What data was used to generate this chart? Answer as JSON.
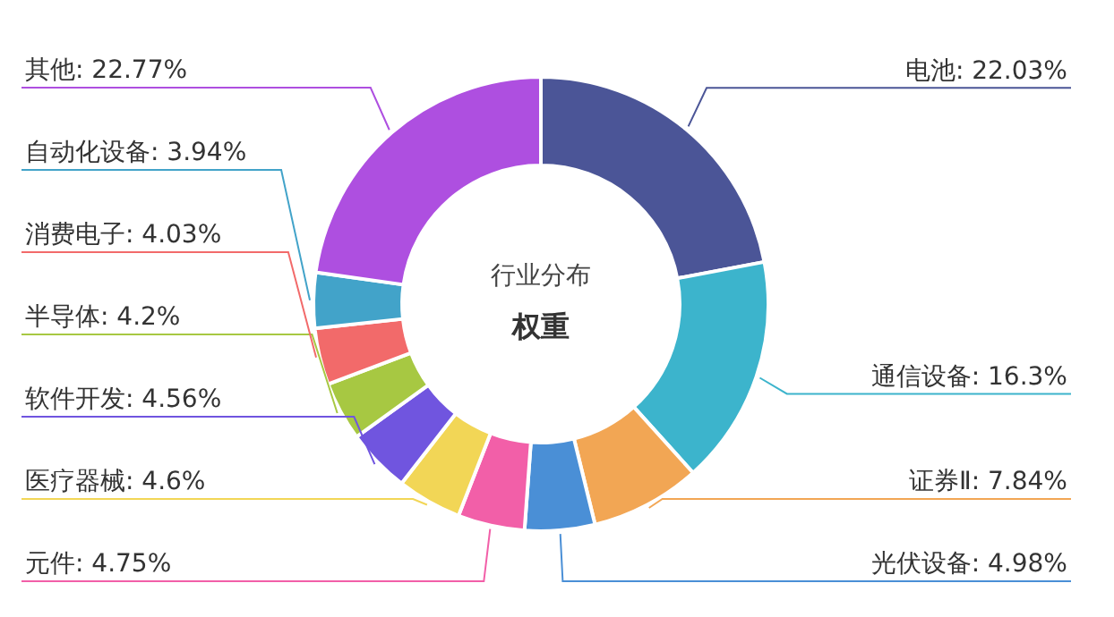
{
  "chart_data": {
    "type": "donut",
    "title": "行业分布",
    "subtitle": "权重",
    "categories": [
      "电池",
      "通信设备",
      "证券Ⅱ",
      "光伏设备",
      "元件",
      "医疗器械",
      "软件开发",
      "半导体",
      "消费电子",
      "自动化设备",
      "其他"
    ],
    "values": [
      22.03,
      16.3,
      7.84,
      4.98,
      4.75,
      4.6,
      4.56,
      4.2,
      4.03,
      3.94,
      22.77
    ],
    "colors": [
      "#4b5597",
      "#3cb4cc",
      "#f2a654",
      "#4a8fd6",
      "#f25fa8",
      "#f2d656",
      "#7055df",
      "#a7c842",
      "#f26a6a",
      "#42a3c9",
      "#ae4fe0"
    ],
    "value_labels": [
      "22.03%",
      "16.3%",
      "7.84%",
      "4.98%",
      "4.75%",
      "4.6%",
      "4.56%",
      "4.2%",
      "4.03%",
      "3.94%",
      "22.77%"
    ],
    "legend": false
  }
}
